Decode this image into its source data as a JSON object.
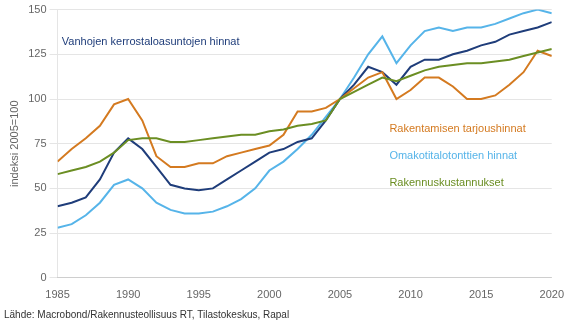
{
  "chart_data": {
    "type": "line",
    "title": "",
    "ylabel": "indeksi 2005=100",
    "source": "Lähde: Macrobond/Rakennusteollisuus RT, Tilastokeskus, Rapal",
    "grid": "y",
    "xlim": [
      1985,
      2020
    ],
    "ylim": [
      0,
      150
    ],
    "xticks": [
      1985,
      1990,
      1995,
      2000,
      2005,
      2010,
      2015,
      2020
    ],
    "yticks": [
      0,
      25,
      50,
      75,
      100,
      125,
      150
    ],
    "x": [
      1985,
      1986,
      1987,
      1988,
      1989,
      1990,
      1991,
      1992,
      1993,
      1994,
      1995,
      1996,
      1997,
      1998,
      1999,
      2000,
      2001,
      2002,
      2003,
      2004,
      2005,
      2006,
      2007,
      2008,
      2009,
      2010,
      2011,
      2012,
      2013,
      2014,
      2015,
      2016,
      2017,
      2018,
      2019,
      2020
    ],
    "series": [
      {
        "name": "Rakennuskustannukset",
        "color": "#6b8e23",
        "values": [
          58,
          60,
          62,
          65,
          70,
          77,
          78,
          78,
          76,
          76,
          77,
          78,
          79,
          80,
          80,
          82,
          83,
          85,
          86,
          88,
          100,
          104,
          108,
          112,
          110,
          113,
          116,
          118,
          119,
          120,
          120,
          121,
          122,
          124,
          126,
          128
        ]
      },
      {
        "name": "Rakentamisen tarjoushinnat",
        "color": "#d47a20",
        "values": [
          65,
          72,
          78,
          85,
          97,
          100,
          88,
          68,
          62,
          62,
          64,
          64,
          68,
          70,
          72,
          74,
          80,
          93,
          93,
          95,
          100,
          106,
          112,
          115,
          100,
          105,
          112,
          112,
          107,
          100,
          100,
          102,
          108,
          115,
          127,
          124
        ]
      },
      {
        "name": "Vanhojen kerrostaloasuntojen hinnat",
        "color": "#1f3d7a",
        "values": [
          40,
          42,
          45,
          55,
          70,
          78,
          72,
          62,
          52,
          50,
          49,
          50,
          55,
          60,
          65,
          70,
          72,
          76,
          78,
          88,
          100,
          108,
          118,
          115,
          108,
          118,
          122,
          122,
          125,
          127,
          130,
          132,
          136,
          138,
          140,
          143
        ]
      },
      {
        "name": "Omakotitalotonttien hinnat",
        "color": "#56b4e9",
        "values": [
          28,
          30,
          35,
          42,
          52,
          55,
          50,
          42,
          38,
          36,
          36,
          37,
          40,
          44,
          50,
          60,
          65,
          72,
          80,
          90,
          100,
          112,
          125,
          135,
          120,
          130,
          138,
          140,
          138,
          140,
          140,
          142,
          145,
          148,
          150,
          148
        ]
      }
    ],
    "annotations": [
      {
        "text": "Vanhojen kerrostaloasuntojen hinnat",
        "x": 1985.3,
        "y": 132,
        "color": "#1f3d7a"
      },
      {
        "text": "Rakentamisen tarjoushinnat",
        "x": 2008.5,
        "y": 83,
        "color": "#d47a20"
      },
      {
        "text": "Omakotitalotonttien hinnat",
        "x": 2008.5,
        "y": 68,
        "color": "#56b4e9"
      },
      {
        "text": "Rakennuskustannukset",
        "x": 2008.5,
        "y": 53,
        "color": "#6b8e23"
      }
    ]
  }
}
